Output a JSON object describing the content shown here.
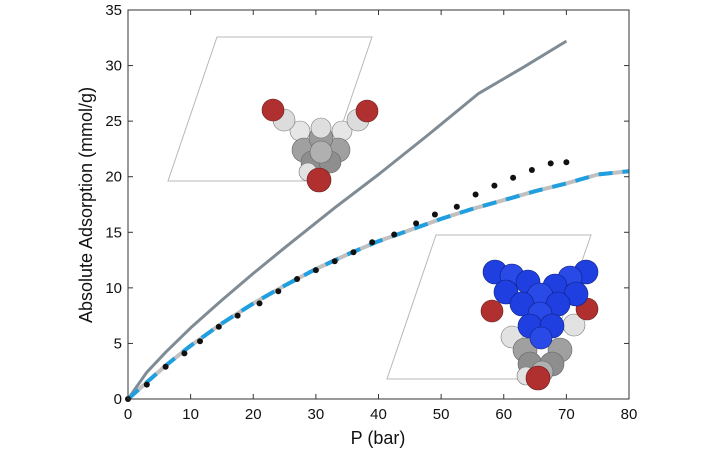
{
  "chart_data": {
    "type": "line",
    "title": "",
    "xlabel": "P (bar)",
    "ylabel": "Absolute Adsorption (mmol/g)",
    "xlim": [
      0,
      80
    ],
    "ylim": [
      0,
      35
    ],
    "x_ticks": [
      "0",
      "10",
      "20",
      "30",
      "40",
      "50",
      "60",
      "70",
      "80"
    ],
    "y_ticks": [
      "0",
      "5",
      "10",
      "15",
      "20",
      "25",
      "30",
      "35"
    ],
    "grid": false,
    "legend": "none",
    "series": [
      {
        "style": "solid",
        "color": "#7f8c95",
        "x": [
          0,
          3,
          6,
          10,
          15,
          20,
          25,
          33,
          40,
          48,
          56,
          63,
          70
        ],
        "y": [
          0,
          2.4,
          4.2,
          6.4,
          8.9,
          11.3,
          13.6,
          17.2,
          20.2,
          23.8,
          27.5,
          29.8,
          32.2
        ]
      },
      {
        "style": "dashed",
        "color": "#1f9fe0",
        "dash_alt_color": "#c0c0c0",
        "x": [
          0,
          3,
          6,
          10,
          15,
          20,
          25,
          30,
          35,
          40,
          45,
          50,
          55,
          60,
          65,
          70,
          75,
          80
        ],
        "y": [
          0,
          1.5,
          3.0,
          4.8,
          6.8,
          8.6,
          10.2,
          11.7,
          13.0,
          14.2,
          15.2,
          16.2,
          17.1,
          17.9,
          18.7,
          19.4,
          20.2,
          20.5
        ]
      },
      {
        "style": "dots",
        "color": "#111111",
        "x": [
          0,
          3,
          6,
          9,
          11.5,
          14.5,
          17.5,
          21,
          24,
          27,
          30,
          33,
          36,
          39,
          42.5,
          46,
          49,
          52.5,
          55.5,
          58.5,
          61.5,
          64.5,
          67.5,
          70
        ],
        "y": [
          0,
          1.3,
          2.9,
          4.1,
          5.2,
          6.5,
          7.5,
          8.6,
          9.7,
          10.8,
          11.6,
          12.4,
          13.2,
          14.1,
          14.8,
          15.8,
          16.6,
          17.3,
          18.4,
          19.2,
          19.9,
          20.6,
          21.2,
          21.3
        ]
      }
    ],
    "insets": [
      {
        "name": "empty-framework-molecule",
        "position": "top-left",
        "atom_colors": [
          "#9a9a9a",
          "#e6e6e6",
          "#b03030"
        ]
      },
      {
        "name": "adsorbed-framework-molecule",
        "position": "bottom-right",
        "atom_colors": [
          "#1f3fe0",
          "#9a9a9a",
          "#e6e6e6",
          "#b03030"
        ]
      }
    ]
  }
}
